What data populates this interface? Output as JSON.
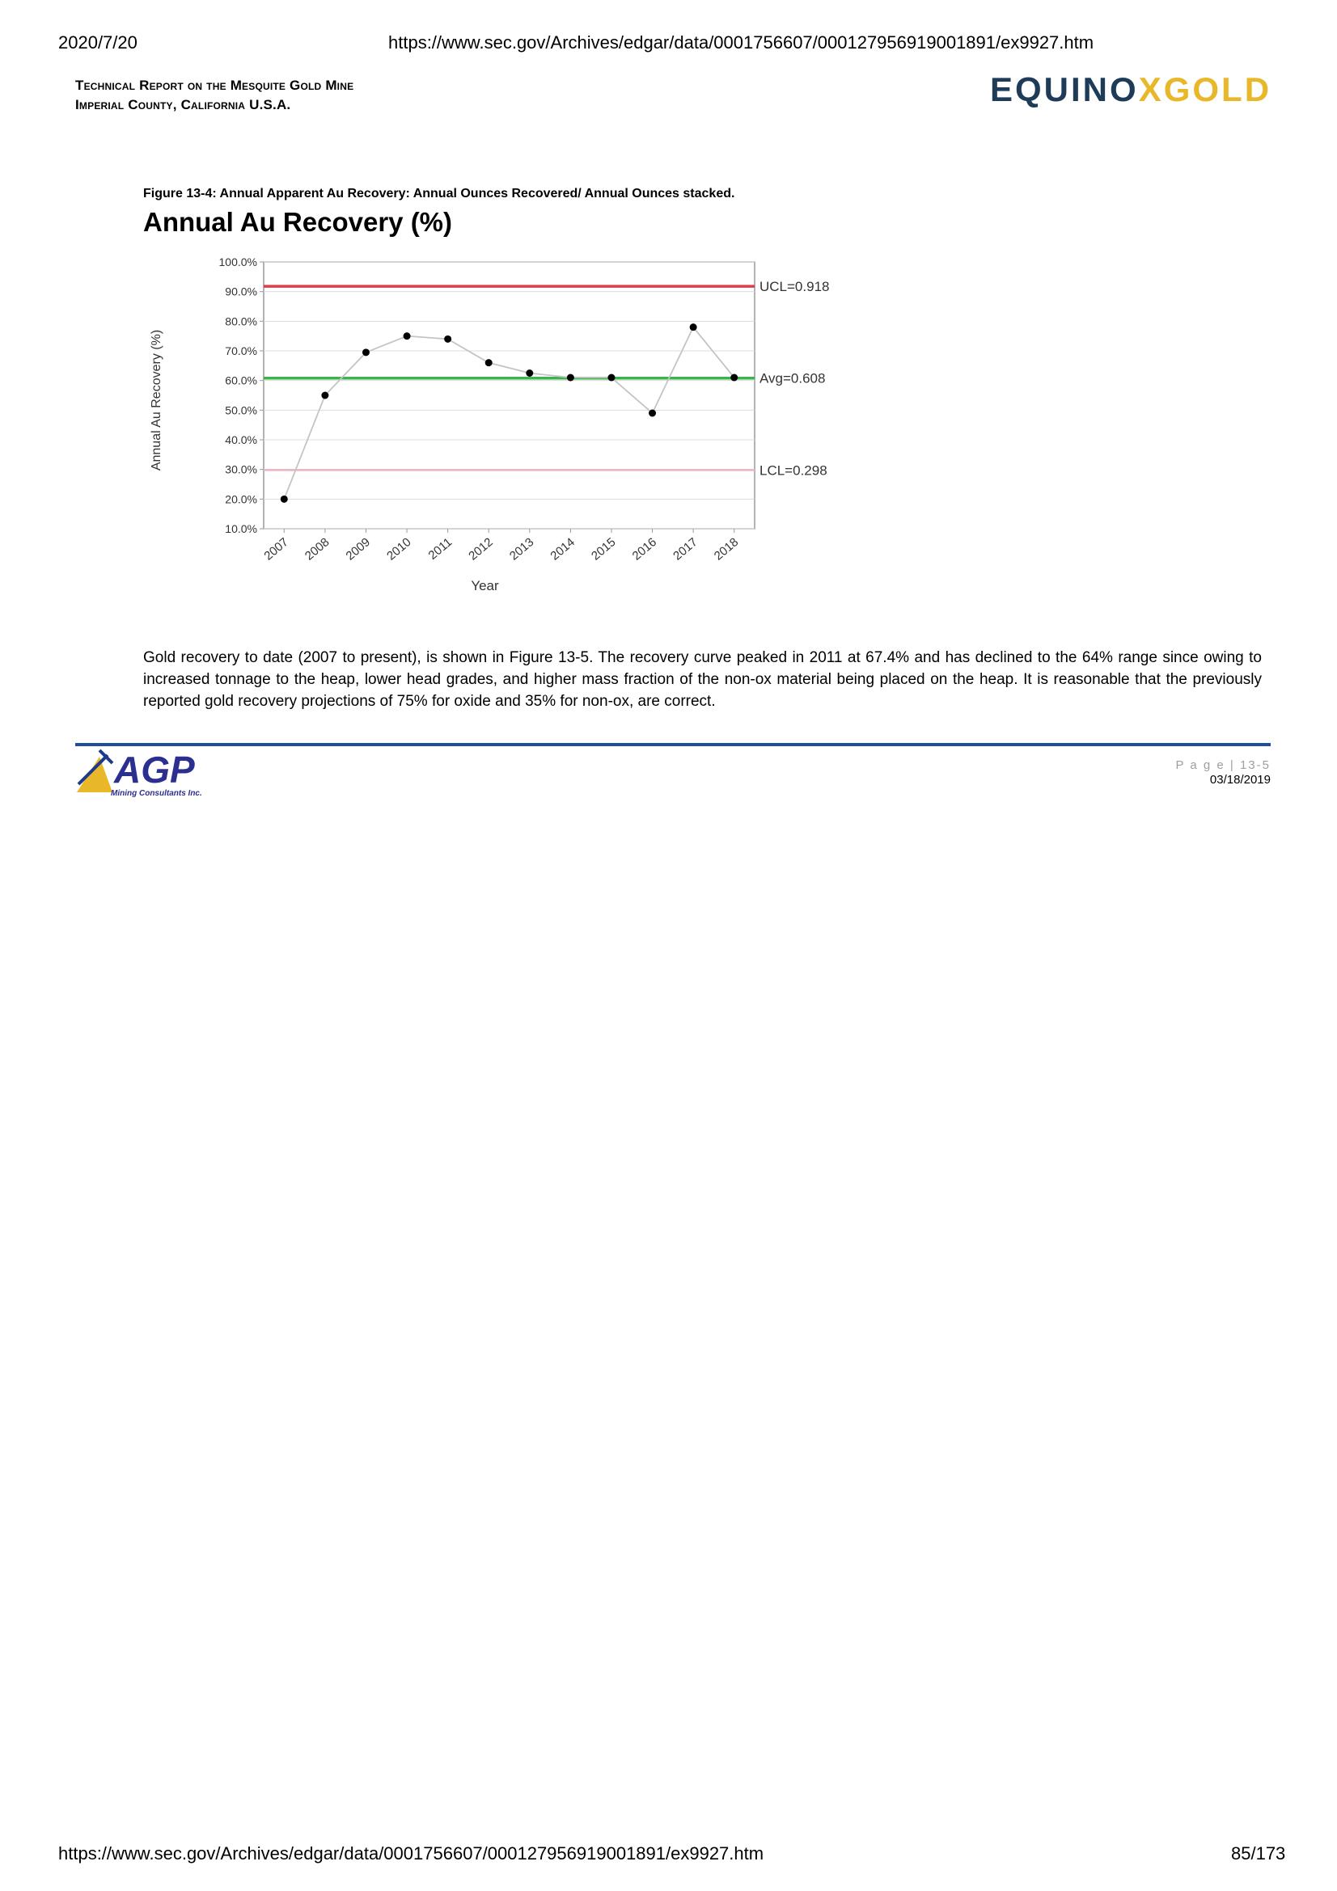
{
  "print_header": {
    "date": "2020/7/20",
    "url": "https://www.sec.gov/Archives/edgar/data/0001756607/000127956919001891/ex9927.htm"
  },
  "report": {
    "title_line1": "Technical Report on the Mesquite Gold Mine",
    "title_line2": "Imperial County, California U.S.A."
  },
  "logo": {
    "part1": "EQUIN",
    "part2": "O",
    "part3": "XGOLD",
    "colors": {
      "navy": "#1e3c58",
      "gold": "#e8b82a"
    }
  },
  "figure": {
    "caption": "Figure 13-4: Annual Apparent Au Recovery: Annual Ounces Recovered/ Annual Ounces stacked."
  },
  "chart_data": {
    "type": "line",
    "title": "Annual Au Recovery (%)",
    "xlabel": "Year",
    "ylabel": "Annual Au Recovery (%)",
    "ylim": [
      0.1,
      1.0
    ],
    "yticks": [
      "100.0%",
      "90.0%",
      "80.0%",
      "70.0%",
      "60.0%",
      "50.0%",
      "40.0%",
      "30.0%",
      "20.0%",
      "10.0%"
    ],
    "ytick_values": [
      1.0,
      0.9,
      0.8,
      0.7,
      0.6,
      0.5,
      0.4,
      0.3,
      0.2,
      0.1
    ],
    "categories": [
      "2007",
      "2008",
      "2009",
      "2010",
      "2011",
      "2012",
      "2013",
      "2014",
      "2015",
      "2016",
      "2017",
      "2018"
    ],
    "values": [
      0.2,
      0.55,
      0.695,
      0.75,
      0.74,
      0.66,
      0.625,
      0.61,
      0.61,
      0.49,
      0.78,
      0.61
    ],
    "grid": true,
    "reference_lines": [
      {
        "label": "UCL=0.918",
        "value": 0.918,
        "color": "#d9404e"
      },
      {
        "label": "Avg=0.608",
        "value": 0.608,
        "color": "#3cb44b"
      },
      {
        "label": "LCL=0.298",
        "value": 0.298,
        "color": "#eab4bc"
      }
    ],
    "line_color": "#c4c4c4",
    "marker_color": "#000000"
  },
  "body": {
    "paragraph": "Gold recovery to date (2007 to present), is shown in Figure 13-5. The recovery curve peaked in 2011 at 67.4% and has declined to the 64% range since owing to increased tonnage to the heap, lower head grades, and higher mass fraction of the non-ox material being placed on the heap. It is reasonable that the previously reported gold recovery projections of 75% for oxide and 35% for non-ox, are correct."
  },
  "footer": {
    "agp_logo_text": "AGP",
    "agp_logo_subtext": "Mining Consultants Inc.",
    "page": "P a g e | 13-5",
    "date": "03/18/2019"
  },
  "print_footer": {
    "url": "https://www.sec.gov/Archives/edgar/data/0001756607/000127956919001891/ex9927.htm",
    "page_count": "85/173"
  }
}
